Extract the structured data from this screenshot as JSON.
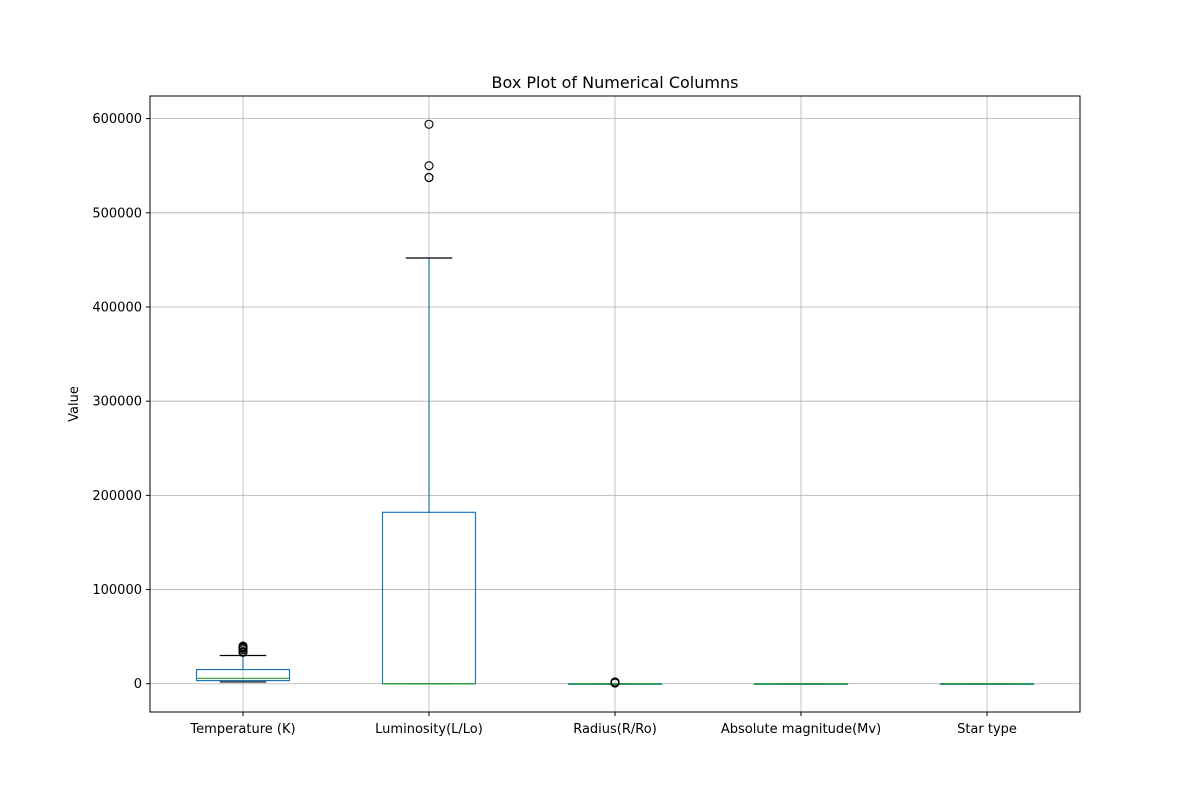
{
  "chart_data": {
    "type": "box",
    "title": "Box Plot of Numerical Columns",
    "xlabel": "",
    "ylabel": "Value",
    "ylim": [
      -30000,
      624000
    ],
    "yticks": [
      0,
      100000,
      200000,
      300000,
      400000,
      500000,
      600000
    ],
    "ytick_labels": [
      "0",
      "100000",
      "200000",
      "300000",
      "400000",
      "500000",
      "600000"
    ],
    "grid": true,
    "categories": [
      "Temperature (K)",
      "Luminosity(L/Lo)",
      "Radius(R/Ro)",
      "Absolute magnitude(Mv)",
      "Star type"
    ],
    "boxes": [
      {
        "whisker_low": 1939,
        "q1": 3344,
        "median": 5776,
        "q3": 15056,
        "whisker_high": 30000,
        "outliers": [
          33300,
          34190,
          36108,
          37800,
          37882,
          38234,
          38940,
          39000,
          40000
        ]
      },
      {
        "whisker_low": 0,
        "q1": 0.00086,
        "median": 0.07,
        "q3": 182000,
        "whisker_high": 452000,
        "outliers": [
          537430,
          537493,
          550000,
          594000
        ]
      },
      {
        "whisker_low": 0.0084,
        "q1": 0.1,
        "median": 0.76,
        "q3": 43,
        "whisker_high": 100,
        "outliers": [
          708,
          1000,
          1200,
          1423,
          1500,
          1673,
          1948
        ]
      },
      {
        "whisker_low": -11.92,
        "q1": -6.23,
        "median": 8.31,
        "q3": 13.7,
        "whisker_high": 20.06,
        "outliers": []
      },
      {
        "whisker_low": 0,
        "q1": 1,
        "median": 2.5,
        "q3": 4,
        "whisker_high": 5,
        "outliers": []
      }
    ],
    "colors": {
      "box": "#1f77b4",
      "median": "#2ca02c",
      "whisker_cap": "#000000",
      "grid": "#b0b0b0",
      "outlier": "#000000"
    }
  }
}
